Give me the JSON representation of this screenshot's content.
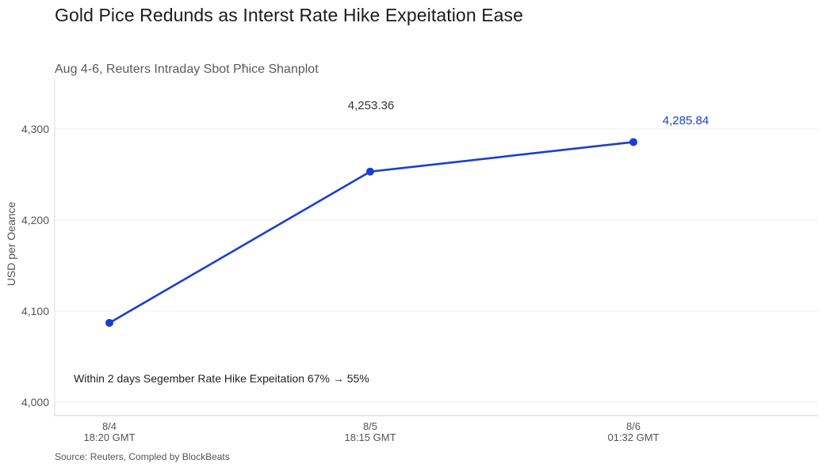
{
  "header": {
    "title": "Gold Pice Redunds as Interst  Rate Hike Expeitation Ease",
    "subtitle": "Aug 4-6, Reuters Intraday Sbot Pħice Shanplot"
  },
  "footer": {
    "source": "Source: Reuters, Compled by BlockBeats"
  },
  "chart_data": {
    "type": "line",
    "title": "Gold Pice Redunds as Interst  Rate Hike Expeitation Ease",
    "subtitle": "Aug 4-6, Reuters Intraday Sbot Pħice Shanplot",
    "ylabel": "USD per Oeance",
    "xlabel": "",
    "categories": [
      {
        "date": "8/4",
        "time": "18:20 GMT"
      },
      {
        "date": "8/5",
        "time": "18:15 GMT"
      },
      {
        "date": "8/6",
        "time": "01:32 GMT"
      }
    ],
    "series": [
      {
        "values": [
          4087,
          4253.36,
          4285.84
        ],
        "color": "#1a3fd0"
      }
    ],
    "data_labels": [
      "",
      "4,253.36",
      "4,285.84"
    ],
    "ylim": [
      3985,
      4355
    ],
    "yticks": [
      {
        "value": 4000,
        "label": "4,000"
      },
      {
        "value": 4100,
        "label": "4,100"
      },
      {
        "value": 4200,
        "label": "4,200"
      },
      {
        "value": 4300,
        "label": "4,300"
      }
    ],
    "grid": true,
    "annotation": "Within 2 days Segember Rate Hike Expeitation 67% → 55%",
    "source": "Source: Reuters, Compled by BlockBeats"
  }
}
